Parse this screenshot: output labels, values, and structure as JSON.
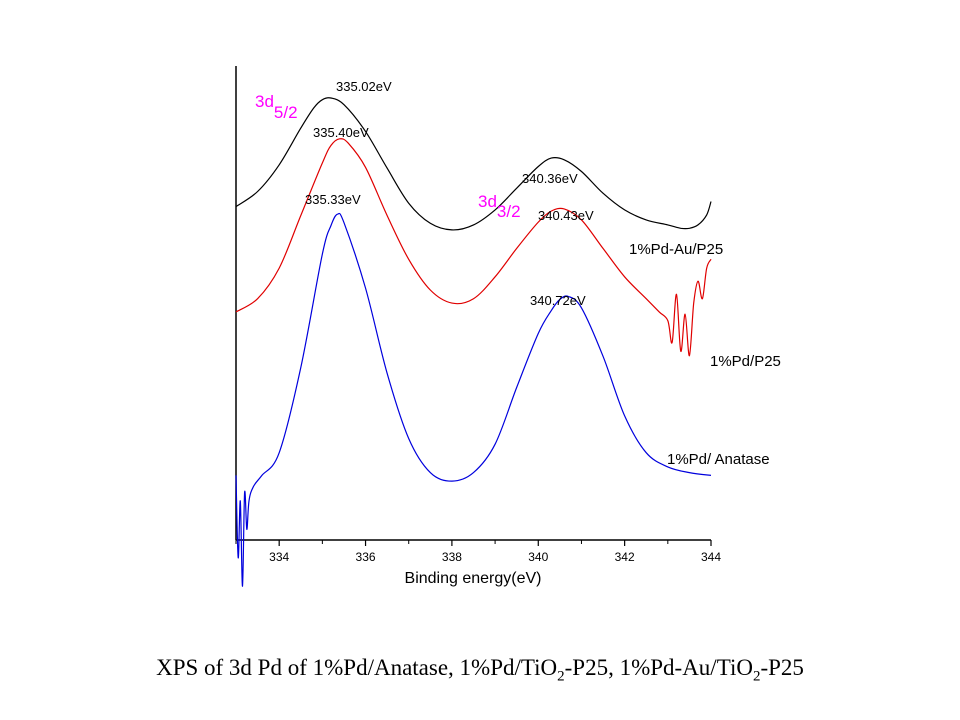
{
  "caption": {
    "prefix": "XPS of  3d Pd of 1%Pd/Anatase, 1%Pd/TiO",
    "sub1": "2",
    "mid": "-P25, 1%Pd-Au/TiO",
    "sub2": "2",
    "suffix": "-P25"
  },
  "chart_data": {
    "type": "line",
    "xlabel": "Binding energy(eV)",
    "ylabel": "",
    "xlim": [
      333,
      344
    ],
    "x_ticks": [
      334,
      336,
      338,
      340,
      342,
      344
    ],
    "grid": false,
    "orbital_labels": [
      {
        "main": "3d",
        "sub": "5/2"
      },
      {
        "main": "3d",
        "sub": "3/2"
      }
    ],
    "series": [
      {
        "name": "1%Pd-Au/P25",
        "color": "#000000",
        "peaks": [
          "335.02eV",
          "340.36eV"
        ],
        "x": [
          333.0,
          333.5,
          334.0,
          334.5,
          334.8,
          335.0,
          335.2,
          335.5,
          336.0,
          336.5,
          337.0,
          337.5,
          338.0,
          338.5,
          339.0,
          339.5,
          340.0,
          340.3,
          340.6,
          341.0,
          341.5,
          342.0,
          342.5,
          343.0,
          343.3,
          343.5,
          343.7,
          343.9,
          344.0
        ],
        "y": [
          0.35,
          0.44,
          0.6,
          0.82,
          0.94,
          0.99,
          1.0,
          0.96,
          0.8,
          0.58,
          0.37,
          0.25,
          0.21,
          0.24,
          0.33,
          0.46,
          0.59,
          0.64,
          0.63,
          0.56,
          0.43,
          0.33,
          0.27,
          0.24,
          0.22,
          0.22,
          0.24,
          0.3,
          0.38
        ]
      },
      {
        "name": "1%Pd/P25",
        "color": "#e00000",
        "peaks": [
          "335.40eV",
          "340.43eV"
        ],
        "x": [
          333.0,
          333.5,
          334.0,
          334.5,
          335.0,
          335.2,
          335.4,
          335.6,
          336.0,
          336.5,
          337.0,
          337.5,
          338.0,
          338.5,
          339.0,
          339.5,
          340.0,
          340.3,
          340.6,
          341.0,
          341.5,
          342.0,
          342.5,
          342.8,
          343.0,
          343.1,
          343.2,
          343.3,
          343.4,
          343.5,
          343.6,
          343.7,
          343.8,
          343.9,
          344.0
        ],
        "y": [
          0.06,
          0.12,
          0.26,
          0.5,
          0.74,
          0.82,
          0.85,
          0.83,
          0.72,
          0.5,
          0.3,
          0.16,
          0.1,
          0.12,
          0.22,
          0.35,
          0.47,
          0.52,
          0.53,
          0.48,
          0.35,
          0.22,
          0.12,
          0.06,
          0.02,
          -0.08,
          0.14,
          -0.12,
          0.05,
          -0.14,
          0.1,
          0.2,
          0.12,
          0.26,
          0.3
        ]
      },
      {
        "name": "1%Pd/ Anatase",
        "color": "#0000dd",
        "peaks": [
          "335.33eV",
          "340.72eV"
        ],
        "x": [
          333.0,
          333.05,
          333.1,
          333.15,
          333.2,
          333.25,
          333.3,
          333.4,
          333.6,
          334.0,
          334.5,
          335.0,
          335.2,
          335.35,
          335.5,
          336.0,
          336.5,
          337.0,
          337.5,
          338.0,
          338.5,
          339.0,
          339.5,
          340.0,
          340.3,
          340.5,
          340.7,
          341.0,
          341.5,
          342.0,
          342.5,
          343.0,
          343.5,
          344.0
        ],
        "y": [
          -0.16,
          -0.45,
          -0.25,
          -0.55,
          -0.22,
          -0.35,
          -0.25,
          -0.2,
          -0.16,
          -0.08,
          0.22,
          0.62,
          0.72,
          0.76,
          0.73,
          0.5,
          0.2,
          -0.03,
          -0.15,
          -0.18,
          -0.15,
          -0.05,
          0.15,
          0.34,
          0.42,
          0.46,
          0.47,
          0.43,
          0.26,
          0.05,
          -0.08,
          -0.13,
          -0.15,
          -0.16
        ]
      }
    ]
  }
}
